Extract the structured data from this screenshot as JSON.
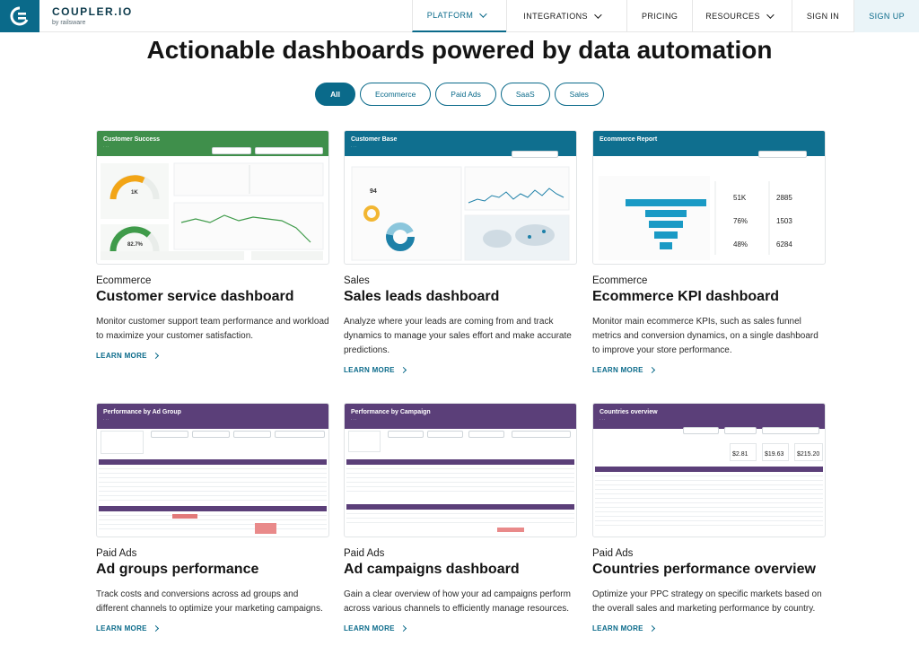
{
  "brand": {
    "name": "COUPLER.IO",
    "sub": "by railsware"
  },
  "nav": {
    "items": [
      {
        "label": "PLATFORM",
        "has_caret": true,
        "active": true
      },
      {
        "label": "INTEGRATIONS",
        "has_caret": true,
        "active": false
      },
      {
        "label": "PRICING",
        "has_caret": false,
        "active": false
      },
      {
        "label": "RESOURCES",
        "has_caret": true,
        "active": false
      },
      {
        "label": "SIGN IN",
        "has_caret": false,
        "active": false
      },
      {
        "label": "SIGN UP",
        "has_caret": false,
        "active": false
      }
    ]
  },
  "heading": "Actionable dashboards powered by data automation",
  "filters": [
    {
      "label": "All",
      "active": true
    },
    {
      "label": "Ecommerce",
      "active": false
    },
    {
      "label": "Paid Ads",
      "active": false
    },
    {
      "label": "SaaS",
      "active": false
    },
    {
      "label": "Sales",
      "active": false
    }
  ],
  "cards": [
    {
      "category": "Ecommerce",
      "title": "Customer service dashboard",
      "description": "Monitor customer support team performance and workload to maximize your customer satisfaction.",
      "link": "LEARN MORE",
      "thumb": {
        "title": "Customer Success",
        "kpi_1": "1K",
        "kpi_2": "82.7%",
        "head_color": "#3f8f4b"
      }
    },
    {
      "category": "Sales",
      "title": "Sales leads dashboard",
      "description": "Analyze where your leads are coming from and track dynamics to manage your sales effort and make accurate predictions.",
      "link": "LEARN MORE",
      "thumb": {
        "title": "Customer Base",
        "kpi_1": "94",
        "head_color": "#0f6f8f"
      }
    },
    {
      "category": "Ecommerce",
      "title": "Ecommerce KPI dashboard",
      "description": "Monitor main ecommerce KPIs, such as sales funnel metrics and conversion dynamics, on a single dashboard to improve your store performance.",
      "link": "LEARN MORE",
      "thumb": {
        "title": "Ecommerce Report",
        "kpi_1": "51K",
        "kpi_2": "2885",
        "kpi_3": "76%",
        "kpi_4": "1503",
        "kpi_5": "48%",
        "kpi_6": "6284",
        "head_color": "#0f6f8f"
      }
    },
    {
      "category": "Paid Ads",
      "title": "Ad groups performance",
      "description": "Track costs and conversions across ad groups and different channels to optimize your marketing campaigns.",
      "link": "LEARN MORE",
      "thumb": {
        "title": "Performance by Ad Group",
        "head_color": "#5b3f79"
      }
    },
    {
      "category": "Paid Ads",
      "title": "Ad campaigns dashboard",
      "description": "Gain a clear overview of how your ad campaigns perform across various channels to efficiently manage resources.",
      "link": "LEARN MORE",
      "thumb": {
        "title": "Performance by Campaign",
        "head_color": "#5b3f79"
      }
    },
    {
      "category": "Paid Ads",
      "title": "Countries performance overview",
      "description": "Optimize your PPC strategy on specific markets based on the overall sales and marketing performance by country.",
      "link": "LEARN MORE",
      "thumb": {
        "title": "Countries overview",
        "kpi_1": "$2.81",
        "kpi_2": "$19.63",
        "kpi_3": "$215.20",
        "head_color": "#5b3f79"
      }
    }
  ]
}
